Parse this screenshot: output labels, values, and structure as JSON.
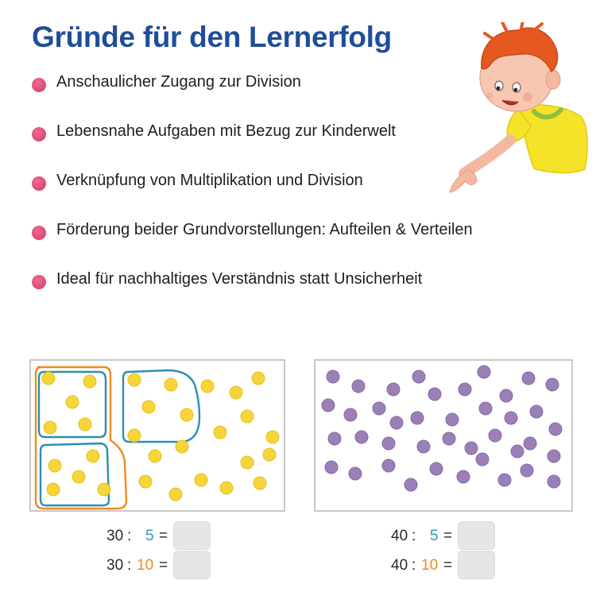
{
  "title": "Gründe für den Lernerfolg",
  "bullets": [
    "Anschaulicher Zugang zur Division",
    "Lebensnahe Aufgaben mit Bezug zur Kinderwelt",
    "Verknüpfung von Multiplikation und Division",
    "Förderung beider Grundvorstellungen: Aufteilen & Verteilen",
    "Ideal für nachhaltiges Verständnis statt Unsicherheit"
  ],
  "colors": {
    "title": "#1f4e99",
    "bullet": "#d94a72",
    "yellow_dot": "#f5d53a",
    "purple_dot": "#9b80b8",
    "group_blue": "#2a8fb0",
    "group_orange": "#f08b1e"
  },
  "left_panel": {
    "dot_count": 30,
    "dot_color": "yellow"
  },
  "right_panel": {
    "dot_count": 40,
    "dot_color": "purple"
  },
  "equations": {
    "left": [
      {
        "dividend": "30",
        "operator": ":",
        "divisor": "5",
        "divisor_color": "blue",
        "equals": "="
      },
      {
        "dividend": "30",
        "operator": ":",
        "divisor": "10",
        "divisor_color": "orange",
        "equals": "="
      }
    ],
    "right": [
      {
        "dividend": "40",
        "operator": ":",
        "divisor": "5",
        "divisor_color": "blue",
        "equals": "="
      },
      {
        "dividend": "40",
        "operator": ":",
        "divisor": "10",
        "divisor_color": "orange",
        "equals": "="
      }
    ]
  }
}
